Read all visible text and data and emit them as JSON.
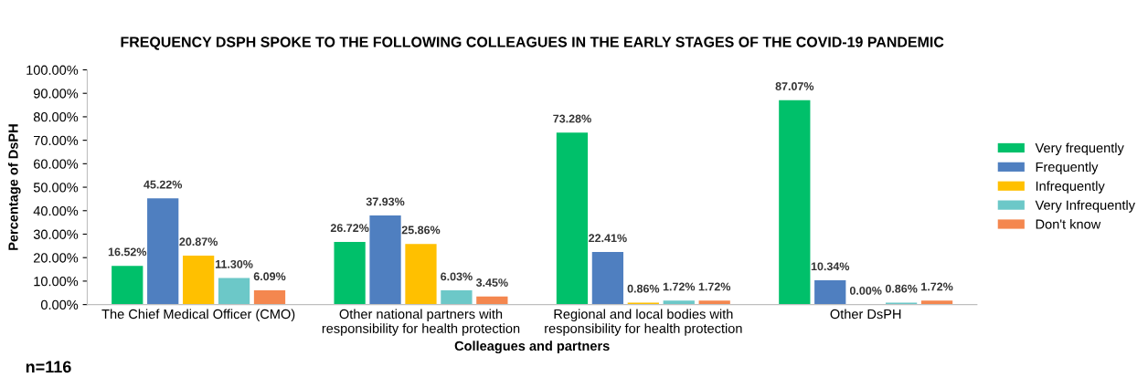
{
  "chart_data": {
    "type": "bar",
    "title": "FREQUENCY DSPH SPOKE TO THE FOLLOWING COLLEAGUES IN THE EARLY STAGES OF THE COVID-19 PANDEMIC",
    "xlabel": "Colleagues and partners",
    "ylabel": "Percentage of DsPH",
    "categories": [
      "The Chief Medical Officer (CMO)",
      "Other national partners with\nresponsibility for health protection",
      "Regional and local bodies with\nresponsibility for health protection",
      "Other DsPH"
    ],
    "series": [
      {
        "name": "Very frequently",
        "color": "#00c06a",
        "values": [
          16.52,
          26.72,
          73.28,
          87.07
        ],
        "value_labels": [
          "16.52%",
          "26.72%",
          "73.28%",
          "87.07%"
        ]
      },
      {
        "name": "Frequently",
        "color": "#4f7fc0",
        "values": [
          45.22,
          37.93,
          22.41,
          10.34
        ],
        "value_labels": [
          "45.22%",
          "37.93%",
          "22.41%",
          "10.34%"
        ]
      },
      {
        "name": "Infrequently",
        "color": "#ffc000",
        "values": [
          20.87,
          25.86,
          0.86,
          0.0
        ],
        "value_labels": [
          "20.87%",
          "25.86%",
          "0.86%",
          "0.00%"
        ]
      },
      {
        "name": "Very Infrequently",
        "color": "#6cc8c8",
        "values": [
          11.3,
          6.03,
          1.72,
          0.86
        ],
        "value_labels": [
          "11.30%",
          "6.03%",
          "1.72%",
          "0.86%"
        ]
      },
      {
        "name": "Don't know",
        "color": "#f4874f",
        "values": [
          6.09,
          3.45,
          1.72,
          1.72
        ],
        "value_labels": [
          "6.09%",
          "3.45%",
          "1.72%",
          "1.72%"
        ]
      }
    ],
    "ylim": [
      0,
      100
    ],
    "yticks": [
      {
        "value": 0,
        "label": "0.00%"
      },
      {
        "value": 10,
        "label": "10.00%"
      },
      {
        "value": 20,
        "label": "20.00%"
      },
      {
        "value": 30,
        "label": "30.00%"
      },
      {
        "value": 40,
        "label": "40.00%"
      },
      {
        "value": 50,
        "label": "50.00%"
      },
      {
        "value": 60,
        "label": "60.00%"
      },
      {
        "value": 70,
        "label": "70.00%"
      },
      {
        "value": 80,
        "label": "80.00%"
      },
      {
        "value": 90,
        "label": "90.00%"
      },
      {
        "value": 100,
        "label": "100.00%"
      }
    ],
    "grid": false,
    "legend": "right",
    "annotations": [
      "n=116"
    ]
  }
}
